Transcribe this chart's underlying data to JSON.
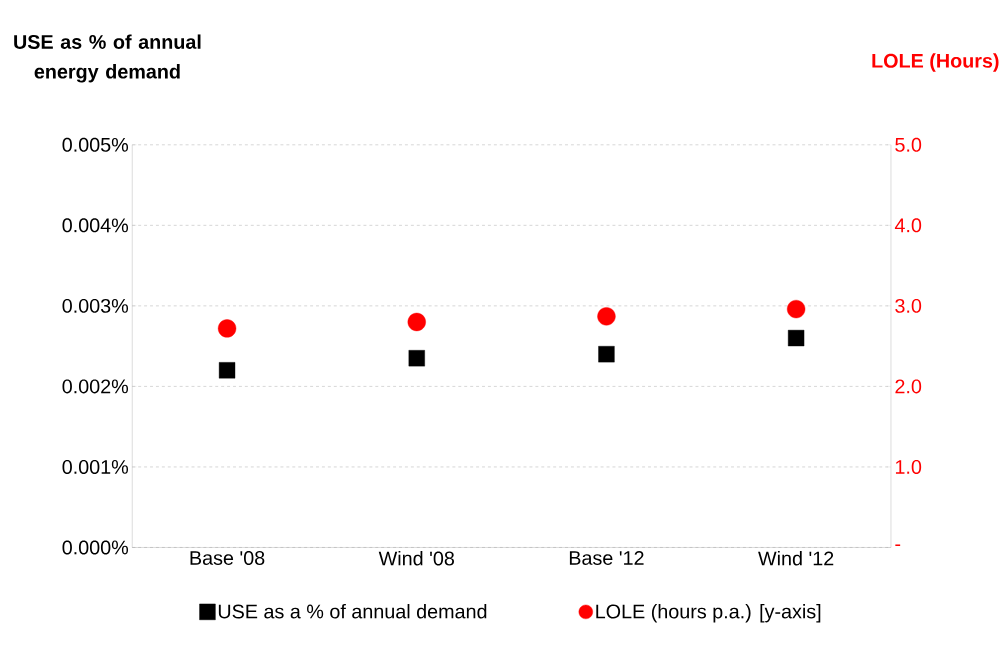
{
  "chart_data": {
    "type": "scatter",
    "ylabel": "USE as % of annual energy demand",
    "y2label": "LOLE (Hours)",
    "categories": [
      "Base '08",
      "Wind '08",
      "Base '12",
      "Wind '12"
    ],
    "series": [
      {
        "name": "USE as a % of annual demand",
        "color": "#000000",
        "marker": "square",
        "values": [
          0.0022,
          0.00235,
          0.0024,
          0.0026
        ]
      },
      {
        "name": "LOLE (hours p.a.) [y-axis]",
        "color": "#ff0000",
        "marker": "circle",
        "axis": "y2",
        "values": [
          2.72,
          2.8,
          2.87,
          2.96
        ]
      }
    ],
    "ylim": [
      0,
      0.005
    ],
    "yticks": [
      {
        "value": 0,
        "label": "0.000%"
      },
      {
        "value": 0.001,
        "label": "0.001%"
      },
      {
        "value": 0.002,
        "label": "0.002%"
      },
      {
        "value": 0.003,
        "label": "0.003%"
      },
      {
        "value": 0.004,
        "label": "0.004%"
      },
      {
        "value": 0.005,
        "label": "0.005%"
      }
    ],
    "y2lim": [
      0,
      5
    ],
    "y2ticks": [
      {
        "value": 0,
        "label": "-"
      },
      {
        "value": 1,
        "label": "1.0"
      },
      {
        "value": 2,
        "label": "2.0"
      },
      {
        "value": 3,
        "label": "3.0"
      },
      {
        "value": 4,
        "label": "4.0"
      },
      {
        "value": 5,
        "label": "5.0"
      }
    ],
    "grid": "y",
    "legend": "bottom"
  }
}
